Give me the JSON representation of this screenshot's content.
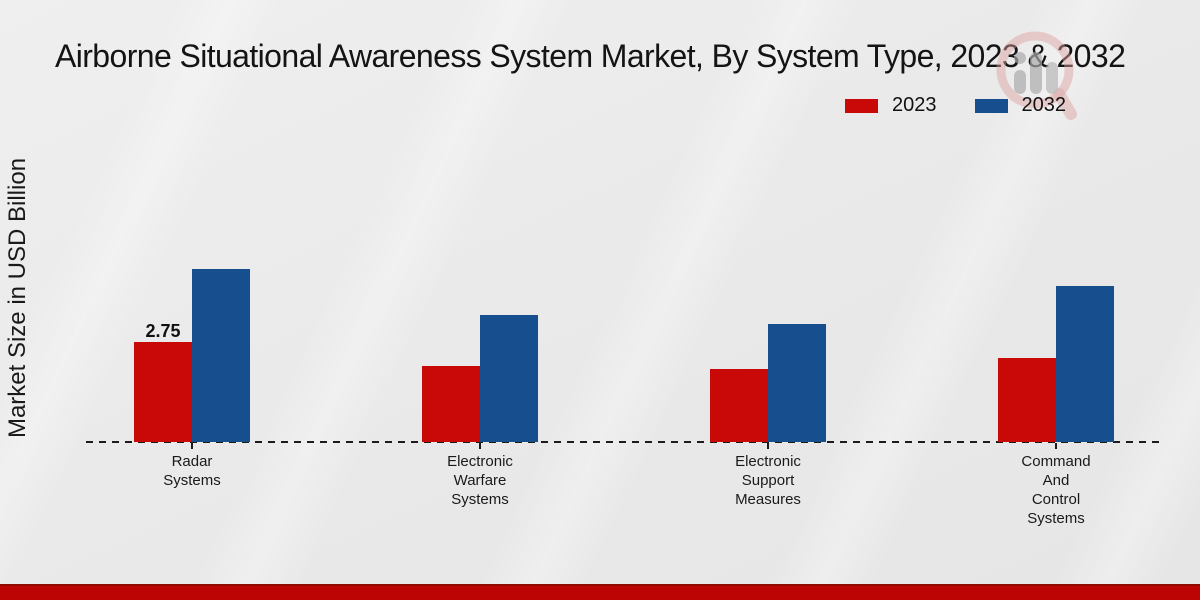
{
  "page": {
    "background_color": "#eaeaea",
    "bottom_band_color": "#bd0404"
  },
  "chart_data": {
    "type": "bar",
    "title": "Airborne Situational Awareness System Market, By System Type, 2023 & 2032",
    "xlabel": "",
    "ylabel": "Market Size in USD Billion",
    "categories": [
      "Radar Systems",
      "Electronic Warfare Systems",
      "Electronic Support Measures",
      "Command And Control Systems"
    ],
    "category_label_lines": [
      [
        "Radar",
        "Systems"
      ],
      [
        "Electronic",
        "Warfare",
        "Systems"
      ],
      [
        "Electronic",
        "Support",
        "Measures"
      ],
      [
        "Command",
        "And",
        "Control",
        "Systems"
      ]
    ],
    "series": [
      {
        "name": "2023",
        "color": "#c90808",
        "values": [
          2.75,
          2.1,
          2.0,
          2.3
        ]
      },
      {
        "name": "2032",
        "color": "#174e8d",
        "values": [
          4.75,
          3.5,
          3.25,
          4.3
        ]
      }
    ],
    "bar_labels": [
      {
        "series": "2023",
        "category_index": 0,
        "text": "2.75"
      }
    ],
    "ylim": [
      0,
      5.5
    ],
    "grid": false,
    "legend_position": "top-right",
    "baseline_style": "dashed",
    "watermark_icon": "bar-chart-magnifier-logo"
  }
}
